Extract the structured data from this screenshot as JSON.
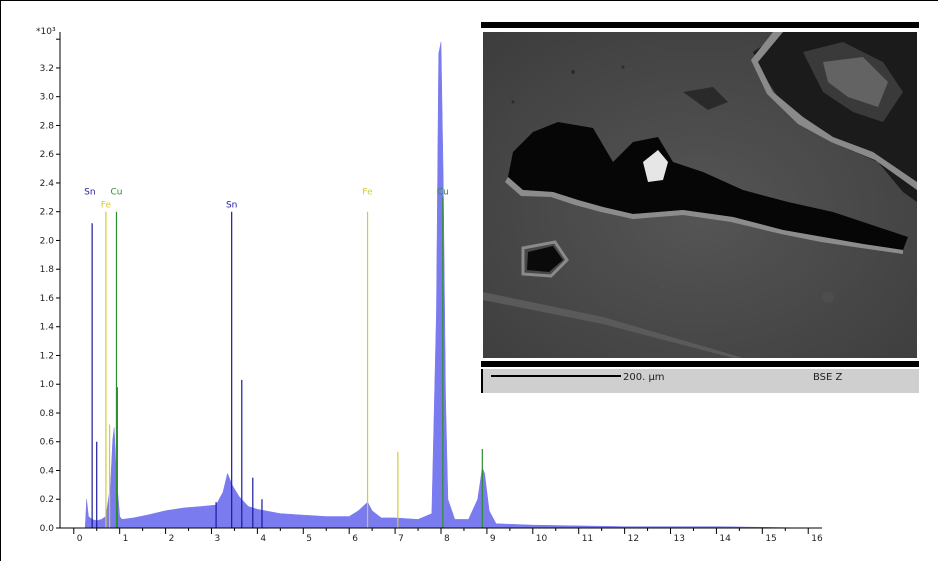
{
  "chart_data": {
    "type": "area",
    "title": "",
    "xlabel": "",
    "ylabel": "",
    "y_multiplier_label": "*10³",
    "xlim": [
      -0.3,
      16.3
    ],
    "ylim": [
      0,
      3.45
    ],
    "x_ticks": [
      0,
      1,
      2,
      3,
      4,
      5,
      6,
      7,
      8,
      9,
      10,
      11,
      12,
      13,
      14,
      15,
      16
    ],
    "y_ticks": [
      0.0,
      0.2,
      0.4,
      0.6,
      0.8,
      1.0,
      1.2,
      1.4,
      1.6,
      1.8,
      2.0,
      2.2,
      2.4,
      2.6,
      2.8,
      3.0,
      3.2
    ],
    "y_tick_labels": [
      "0.0",
      "0.2",
      "0.4",
      "0.6",
      "0.8",
      "1.0",
      "1.2",
      "1.4",
      "1.6",
      "1.8",
      "2.0",
      "2.2",
      "2.4",
      "2.6",
      "2.8",
      "3.0",
      "3.2"
    ],
    "grid": false,
    "spectrum_color": "#7b7bf0",
    "spectrum": [
      [
        0.0,
        0.0
      ],
      [
        0.25,
        0.0
      ],
      [
        0.28,
        0.2
      ],
      [
        0.32,
        0.08
      ],
      [
        0.4,
        0.06
      ],
      [
        0.5,
        0.05
      ],
      [
        0.6,
        0.06
      ],
      [
        0.7,
        0.08
      ],
      [
        0.8,
        0.3
      ],
      [
        0.85,
        0.62
      ],
      [
        0.88,
        0.7
      ],
      [
        0.92,
        0.4
      ],
      [
        1.0,
        0.08
      ],
      [
        1.05,
        0.06
      ],
      [
        1.3,
        0.07
      ],
      [
        1.6,
        0.09
      ],
      [
        2.0,
        0.12
      ],
      [
        2.4,
        0.14
      ],
      [
        2.8,
        0.15
      ],
      [
        3.1,
        0.16
      ],
      [
        3.25,
        0.25
      ],
      [
        3.35,
        0.38
      ],
      [
        3.45,
        0.3
      ],
      [
        3.6,
        0.22
      ],
      [
        3.8,
        0.15
      ],
      [
        4.0,
        0.13
      ],
      [
        4.5,
        0.1
      ],
      [
        5.0,
        0.09
      ],
      [
        5.5,
        0.08
      ],
      [
        6.0,
        0.08
      ],
      [
        6.2,
        0.12
      ],
      [
        6.4,
        0.18
      ],
      [
        6.5,
        0.12
      ],
      [
        6.7,
        0.07
      ],
      [
        7.0,
        0.07
      ],
      [
        7.5,
        0.06
      ],
      [
        7.8,
        0.1
      ],
      [
        7.9,
        1.5
      ],
      [
        7.95,
        3.3
      ],
      [
        8.0,
        3.38
      ],
      [
        8.05,
        2.4
      ],
      [
        8.1,
        0.9
      ],
      [
        8.15,
        0.2
      ],
      [
        8.3,
        0.06
      ],
      [
        8.6,
        0.06
      ],
      [
        8.8,
        0.2
      ],
      [
        8.9,
        0.42
      ],
      [
        8.95,
        0.38
      ],
      [
        9.05,
        0.12
      ],
      [
        9.2,
        0.03
      ],
      [
        10.0,
        0.02
      ],
      [
        12.0,
        0.01
      ],
      [
        14.0,
        0.01
      ],
      [
        16.0,
        0.0
      ]
    ],
    "element_markers": [
      {
        "element": "Sn",
        "x": 0.4,
        "height": 2.12,
        "color": "#1a1a9c"
      },
      {
        "element": "Sn",
        "x": 0.5,
        "height": 0.6,
        "color": "#1a1a9c"
      },
      {
        "element": "Sn",
        "x": 3.44,
        "height": 2.2,
        "color": "#1a1a9c"
      },
      {
        "element": "Sn",
        "x": 3.66,
        "height": 1.03,
        "color": "#1a1a9c"
      },
      {
        "element": "Sn",
        "x": 3.9,
        "height": 0.35,
        "color": "#1a1a9c"
      },
      {
        "element": "Sn",
        "x": 3.1,
        "height": 0.18,
        "color": "#1a1a9c"
      },
      {
        "element": "Sn",
        "x": 4.1,
        "height": 0.2,
        "color": "#1a1a9c"
      },
      {
        "element": "Fe",
        "x": 0.7,
        "height": 2.2,
        "color": "#d4cc32"
      },
      {
        "element": "Fe",
        "x": 0.78,
        "height": 0.72,
        "color": "#d4cc32"
      },
      {
        "element": "Fe",
        "x": 6.4,
        "height": 2.2,
        "color": "#d4cc32"
      },
      {
        "element": "Fe",
        "x": 7.06,
        "height": 0.53,
        "color": "#d4cc32"
      },
      {
        "element": "Cu",
        "x": 0.93,
        "height": 2.2,
        "color": "#2e8f2e"
      },
      {
        "element": "Cu",
        "x": 0.95,
        "height": 0.98,
        "color": "#2e8f2e"
      },
      {
        "element": "Cu",
        "x": 8.04,
        "height": 2.3,
        "color": "#2e8f2e"
      },
      {
        "element": "Cu",
        "x": 8.9,
        "height": 0.55,
        "color": "#2e8f2e"
      }
    ],
    "peak_labels": [
      {
        "text": "Sn",
        "x": 0.35,
        "y": 2.32,
        "color": "#1a1a9c"
      },
      {
        "text": "Cu",
        "x": 0.93,
        "y": 2.32,
        "color": "#2e8f2e"
      },
      {
        "text": "Fe",
        "x": 0.7,
        "y": 2.23,
        "color": "#d4cc32"
      },
      {
        "text": "Sn",
        "x": 3.44,
        "y": 2.23,
        "color": "#1a1a9c"
      },
      {
        "text": "Fe",
        "x": 6.4,
        "y": 2.32,
        "color": "#d4cc32"
      },
      {
        "text": "Cu",
        "x": 8.04,
        "y": 2.32,
        "color": "#2e8f2e"
      }
    ]
  },
  "sem": {
    "scale_label": "200. µm",
    "mode_label": "BSE Z"
  }
}
